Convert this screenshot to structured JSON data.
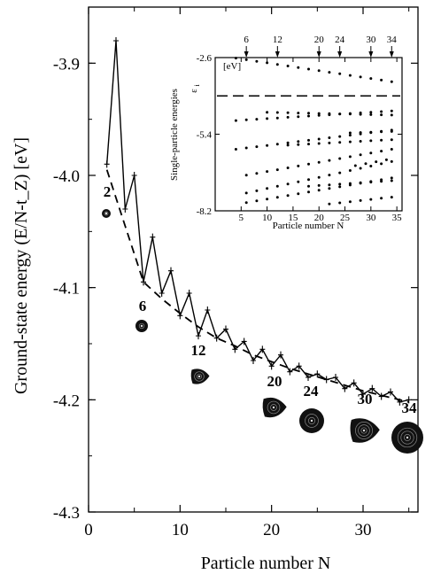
{
  "chart_data": [
    {
      "type": "line",
      "xlabel": "Particle number N",
      "ylabel": "Ground-state energy (E/N-t_Z) [eV]",
      "xlim": [
        0,
        36
      ],
      "ylim": [
        -4.3,
        -3.85
      ],
      "x_ticks": [
        0,
        10,
        20,
        30
      ],
      "x_tick_labels": [
        "0",
        "10",
        "20",
        "30"
      ],
      "y_ticks": [
        -3.9,
        -4.0,
        -4.1,
        -4.2,
        -4.3
      ],
      "y_tick_labels": [
        "-3.9",
        "-4.0",
        "-4.1",
        "-4.2",
        "-4.3"
      ],
      "grid": false,
      "series": [
        {
          "style": "solid-with-markers",
          "x": [
            2,
            3,
            4,
            5,
            6,
            7,
            8,
            9,
            10,
            11,
            12,
            13,
            14,
            15,
            16,
            17,
            18,
            19,
            20,
            21,
            22,
            23,
            24,
            25,
            26,
            27,
            28,
            29,
            30,
            31,
            32,
            33,
            34,
            35
          ],
          "y": [
            -3.99,
            -3.88,
            -4.03,
            -4.0,
            -4.095,
            -4.055,
            -4.105,
            -4.085,
            -4.125,
            -4.105,
            -4.143,
            -4.12,
            -4.145,
            -4.137,
            -4.155,
            -4.148,
            -4.165,
            -4.155,
            -4.17,
            -4.16,
            -4.175,
            -4.17,
            -4.18,
            -4.177,
            -4.182,
            -4.18,
            -4.19,
            -4.185,
            -4.195,
            -4.19,
            -4.197,
            -4.193,
            -4.202,
            -4.2
          ]
        },
        {
          "style": "dashed",
          "x": [
            2,
            4,
            6,
            8,
            10,
            12,
            14,
            16,
            18,
            20,
            22,
            24,
            26,
            28,
            30,
            32,
            34,
            35
          ],
          "y": [
            -3.995,
            -4.045,
            -4.095,
            -4.11,
            -4.123,
            -4.135,
            -4.145,
            -4.152,
            -4.16,
            -4.166,
            -4.172,
            -4.177,
            -4.182,
            -4.187,
            -4.192,
            -4.196,
            -4.2,
            -4.202
          ]
        }
      ],
      "clusters": [
        {
          "label": "2",
          "n": 2
        },
        {
          "label": "6",
          "n": 6
        },
        {
          "label": "12",
          "n": 12
        },
        {
          "label": "20",
          "n": 20
        },
        {
          "label": "24",
          "n": 24
        },
        {
          "label": "30",
          "n": 30
        },
        {
          "label": "34",
          "n": 34
        }
      ]
    },
    {
      "type": "scatter",
      "xlabel": "Particle number N",
      "ylabel": "Single-particle energies",
      "ylabel_symbol": "ε",
      "ylabel_subscript": "i",
      "ylabel_unit": "[eV]",
      "xlim": [
        0,
        36
      ],
      "ylim": [
        -8.2,
        -2.6
      ],
      "x_ticks": [
        5,
        10,
        15,
        20,
        25,
        30,
        35
      ],
      "x_tick_labels": [
        "5",
        "10",
        "15",
        "20",
        "25",
        "30",
        "35"
      ],
      "y_ticks": [
        -2.6,
        -5.4,
        -8.2
      ],
      "y_tick_labels": [
        "-2.6",
        "-5.4",
        "-8.2"
      ],
      "fermi_level": -4.0,
      "magic_numbers": [
        6,
        12,
        20,
        24,
        30,
        34
      ],
      "magic_labels": [
        "6",
        "12",
        "20",
        "24",
        "30",
        "34"
      ],
      "levels": [
        {
          "start": 4,
          "y0": -2.62,
          "y1": -3.48
        },
        {
          "start": 4,
          "y0": -4.9,
          "y1": -4.55
        },
        {
          "start": 4,
          "y0": -5.95,
          "y1": -5.25
        },
        {
          "start": 6,
          "y0": -6.9,
          "y1": -5.95
        },
        {
          "start": 6,
          "y0": -7.55,
          "y1": -6.4
        },
        {
          "start": 6,
          "y0": -7.9,
          "y1": -7.0
        },
        {
          "start": 10,
          "y0": -4.6,
          "y1": -4.7
        },
        {
          "start": 14,
          "y0": -5.8,
          "y1": -5.6
        },
        {
          "start": 18,
          "y0": -7.3,
          "y1": -7.1
        },
        {
          "start": 22,
          "y0": -7.95,
          "y1": -7.7
        },
        {
          "start": 26,
          "y0": -5.35,
          "y1": -5.3
        },
        {
          "start": 27,
          "y0": -6.55,
          "y1": -6.3
        }
      ]
    }
  ]
}
